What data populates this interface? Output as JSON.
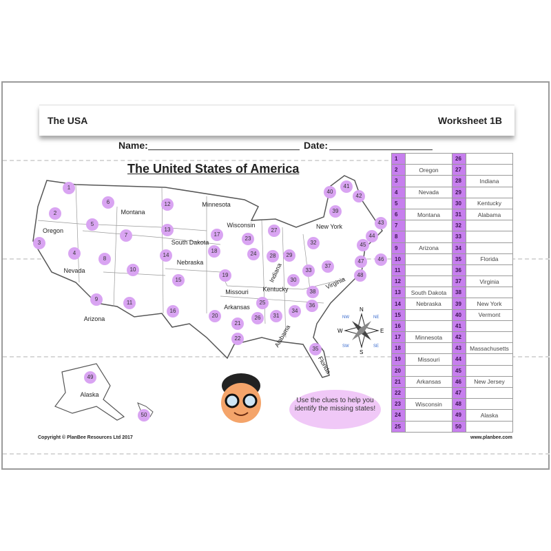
{
  "header": {
    "left": "The USA",
    "right": "Worksheet 1B"
  },
  "name_label": "Name:",
  "date_label": "Date:",
  "title": "The United States of America",
  "map_labels": [
    "Oregon",
    "Montana",
    "Nevada",
    "South Dakota",
    "Nebraska",
    "Arizona",
    "Minnesota",
    "Wisconsin",
    "Missouri",
    "Arkansas",
    "New York",
    "Indiana",
    "Kentucky",
    "Virginia",
    "Alabama",
    "Florida",
    "Alaska"
  ],
  "compass": {
    "n": "N",
    "s": "S",
    "e": "E",
    "w": "W",
    "ne": "NE",
    "nw": "NW",
    "se": "SE",
    "sw": "SW"
  },
  "markers": [
    "1",
    "2",
    "3",
    "4",
    "5",
    "6",
    "7",
    "8",
    "9",
    "10",
    "11",
    "12",
    "13",
    "14",
    "15",
    "16",
    "17",
    "18",
    "19",
    "20",
    "21",
    "22",
    "23",
    "24",
    "25",
    "26",
    "27",
    "28",
    "29",
    "30",
    "31",
    "32",
    "33",
    "34",
    "35",
    "36",
    "37",
    "38",
    "39",
    "40",
    "41",
    "42",
    "43",
    "44",
    "45",
    "46",
    "47",
    "48",
    "49",
    "50"
  ],
  "table": {
    "rows": [
      [
        "1",
        "",
        "26",
        ""
      ],
      [
        "2",
        "Oregon",
        "27",
        ""
      ],
      [
        "3",
        "",
        "28",
        "Indiana"
      ],
      [
        "4",
        "Nevada",
        "29",
        ""
      ],
      [
        "5",
        "",
        "30",
        "Kentucky"
      ],
      [
        "6",
        "Montana",
        "31",
        "Alabama"
      ],
      [
        "7",
        "",
        "32",
        ""
      ],
      [
        "8",
        "",
        "33",
        ""
      ],
      [
        "9",
        "Arizona",
        "34",
        ""
      ],
      [
        "10",
        "",
        "35",
        "Florida"
      ],
      [
        "11",
        "",
        "36",
        ""
      ],
      [
        "12",
        "",
        "37",
        "Virginia"
      ],
      [
        "13",
        "South Dakota",
        "38",
        ""
      ],
      [
        "14",
        "Nebraska",
        "39",
        "New York"
      ],
      [
        "15",
        "",
        "40",
        "Vermont"
      ],
      [
        "16",
        "",
        "41",
        ""
      ],
      [
        "17",
        "Minnesota",
        "42",
        ""
      ],
      [
        "18",
        "",
        "43",
        "Massachusetts"
      ],
      [
        "19",
        "Missouri",
        "44",
        ""
      ],
      [
        "20",
        "",
        "45",
        ""
      ],
      [
        "21",
        "Arkansas",
        "46",
        "New Jersey"
      ],
      [
        "22",
        "",
        "47",
        ""
      ],
      [
        "23",
        "Wisconsin",
        "48",
        ""
      ],
      [
        "24",
        "",
        "49",
        "Alaska"
      ],
      [
        "25",
        "",
        "50",
        ""
      ]
    ]
  },
  "bubble": "Use the clues to help you identify the missing states!",
  "copyright": "Copyright © PlanBee Resources Ltd 2017",
  "website": "www.planbee.com",
  "colors": {
    "marker": "#d9a4f2",
    "number_column": "#c77fee",
    "bubble": "#f0c8f7"
  }
}
